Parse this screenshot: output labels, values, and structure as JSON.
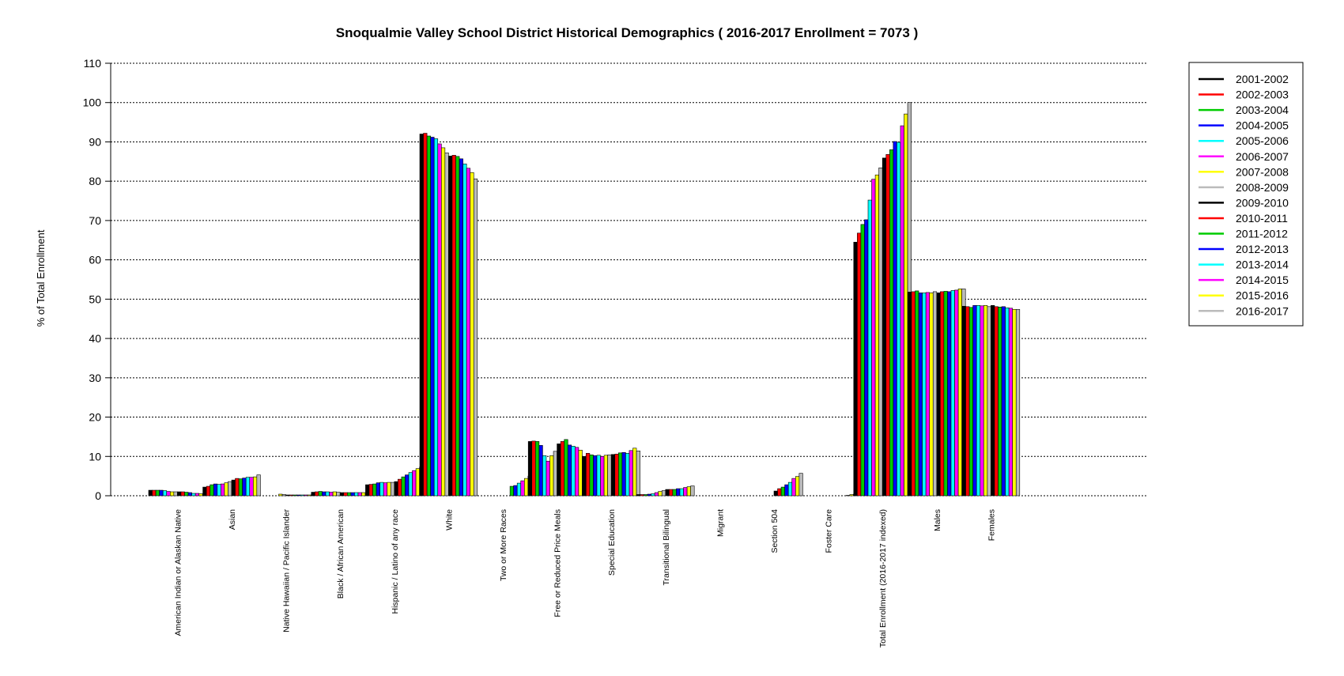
{
  "chart_data": {
    "type": "bar",
    "title": "Snoqualmie Valley School District Historical Demographics  ( 2016-2017 Enrollment =  7073 )",
    "xlabel": "",
    "ylabel": "% of Total Enrollment",
    "ylim": [
      0,
      110
    ],
    "yticks": [
      0,
      10,
      20,
      30,
      40,
      50,
      60,
      70,
      80,
      90,
      100,
      110
    ],
    "grid": true,
    "legend_position": "right",
    "categories": [
      "American Indian or Alaskan Native",
      "Asian",
      "Native Hawaiian / Pacific Islander",
      "Black / African American",
      "Hispanic / Latino of any race",
      "White",
      "Two or More Races",
      "Free or Reduced Price Meals",
      "Special Education",
      "Transitional Bilingual",
      "Migrant",
      "Section 504",
      "Foster Care",
      "Total Enrollment (2016-2017 indexed)",
      "Males",
      "Females"
    ],
    "series": [
      {
        "name": "2001-2002",
        "color": "#000000",
        "values": [
          1.4,
          2.2,
          0.0,
          0.9,
          2.8,
          92.0,
          0.0,
          13.8,
          10.0,
          0.3,
          0.0,
          0.0,
          0.0,
          64.5,
          51.8,
          48.2
        ]
      },
      {
        "name": "2002-2003",
        "color": "#ff0000",
        "values": [
          1.4,
          2.4,
          0.0,
          1.0,
          2.9,
          92.2,
          0.0,
          13.9,
          10.8,
          0.3,
          0.0,
          0.0,
          0.0,
          66.8,
          51.9,
          48.1
        ]
      },
      {
        "name": "2003-2004",
        "color": "#00cc00",
        "values": [
          1.4,
          2.8,
          0.0,
          1.1,
          3.0,
          91.5,
          0.0,
          13.8,
          10.4,
          0.3,
          0.0,
          0.0,
          0.0,
          69.0,
          52.1,
          47.9
        ]
      },
      {
        "name": "2004-2005",
        "color": "#0000ff",
        "values": [
          1.4,
          3.0,
          0.0,
          1.0,
          3.3,
          91.2,
          0.0,
          12.8,
          10.2,
          0.4,
          0.0,
          0.0,
          0.0,
          70.2,
          51.6,
          48.4
        ]
      },
      {
        "name": "2005-2006",
        "color": "#00ffff",
        "values": [
          1.3,
          2.9,
          0.0,
          1.0,
          3.4,
          90.8,
          0.0,
          10.2,
          10.3,
          0.5,
          0.0,
          0.0,
          0.0,
          75.2,
          51.6,
          48.4
        ]
      },
      {
        "name": "2006-2007",
        "color": "#ff00ff",
        "values": [
          1.1,
          3.0,
          0.0,
          0.9,
          3.3,
          89.5,
          0.0,
          8.8,
          10.0,
          0.8,
          0.0,
          0.0,
          0.0,
          80.5,
          51.7,
          48.3
        ]
      },
      {
        "name": "2007-2008",
        "color": "#ffff00",
        "values": [
          1.0,
          3.3,
          0.4,
          1.0,
          3.4,
          88.5,
          0.0,
          10.2,
          10.3,
          1.1,
          0.0,
          0.0,
          0.0,
          81.6,
          51.6,
          48.4
        ]
      },
      {
        "name": "2008-2009",
        "color": "#bbbbbb",
        "values": [
          1.0,
          3.6,
          0.3,
          0.9,
          3.4,
          87.2,
          0.0,
          11.3,
          10.4,
          1.3,
          0.0,
          0.0,
          0.0,
          83.4,
          51.9,
          48.1
        ]
      },
      {
        "name": "2009-2010",
        "color": "#000000",
        "values": [
          1.0,
          4.0,
          0.2,
          0.8,
          3.6,
          86.4,
          0.0,
          13.2,
          10.5,
          1.6,
          0.0,
          1.2,
          0.0,
          85.9,
          51.6,
          48.4
        ]
      },
      {
        "name": "2010-2011",
        "color": "#ff0000",
        "values": [
          1.0,
          4.4,
          0.2,
          0.8,
          4.2,
          86.6,
          0.0,
          13.8,
          10.6,
          1.6,
          0.0,
          1.8,
          0.0,
          86.8,
          51.9,
          48.1
        ]
      },
      {
        "name": "2011-2012",
        "color": "#00cc00",
        "values": [
          0.9,
          4.3,
          0.2,
          0.8,
          4.8,
          86.3,
          2.4,
          14.3,
          10.9,
          1.6,
          0.0,
          2.2,
          0.0,
          88.0,
          52.0,
          48.0
        ]
      },
      {
        "name": "2012-2013",
        "color": "#0000ff",
        "values": [
          0.8,
          4.5,
          0.2,
          0.8,
          5.3,
          85.7,
          2.6,
          12.9,
          11.0,
          1.8,
          0.0,
          2.8,
          0.0,
          90.1,
          51.9,
          48.1
        ]
      },
      {
        "name": "2013-2014",
        "color": "#00ffff",
        "values": [
          0.6,
          4.7,
          0.2,
          0.8,
          5.9,
          84.4,
          3.2,
          12.6,
          10.8,
          1.8,
          0.0,
          3.4,
          0.0,
          89.9,
          52.2,
          47.8
        ]
      },
      {
        "name": "2014-2015",
        "color": "#ff00ff",
        "values": [
          0.6,
          4.7,
          0.2,
          0.8,
          6.4,
          83.3,
          3.8,
          12.3,
          11.5,
          2.1,
          0.0,
          4.4,
          0.1,
          94.1,
          52.3,
          47.7
        ]
      },
      {
        "name": "2015-2016",
        "color": "#ffff00",
        "values": [
          0.5,
          4.8,
          0.2,
          0.8,
          6.9,
          82.2,
          4.4,
          11.6,
          12.1,
          2.3,
          0.0,
          4.9,
          0.3,
          97.1,
          52.6,
          47.4
        ]
      },
      {
        "name": "2016-2017",
        "color": "#bbbbbb",
        "values": [
          0.5,
          5.3,
          0.2,
          0.7,
          7.3,
          80.6,
          5.0,
          10.0,
          11.4,
          2.5,
          0.0,
          5.7,
          0.4,
          100.0,
          52.6,
          47.4
        ]
      }
    ]
  }
}
